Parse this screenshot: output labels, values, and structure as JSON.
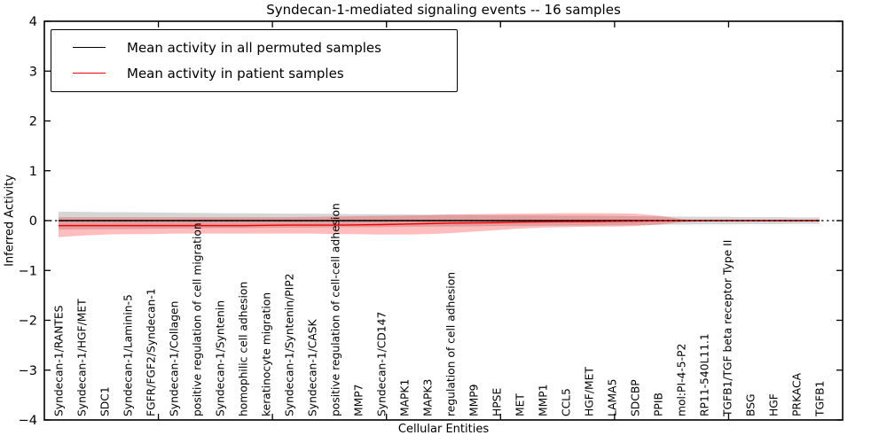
{
  "title": "Syndecan-1-mediated signaling events -- 16 samples",
  "chart_data": {
    "type": "line",
    "title": "Syndecan-1-mediated signaling events -- 16 samples",
    "xlabel": "Cellular Entities",
    "ylabel": "Inferred Activity",
    "ylim": [
      -4,
      4
    ],
    "yticks": [
      4,
      3,
      2,
      1,
      0,
      -1,
      -2,
      -3,
      -4
    ],
    "grid": false,
    "legend_position": "upper-left",
    "zero_line_dashed": true,
    "categories": [
      "Syndecan-1/RANTES",
      "Syndecan-1/HGF/MET",
      "SDC1",
      "Syndecan-1/Laminin-5",
      "FGFR/FGF2/Syndecan-1",
      "Syndecan-1/Collagen",
      "positive regulation of cell migration",
      "Syndecan-1/Syntenin",
      "homophilic cell adhesion",
      "keratinocyte migration",
      "Syndecan-1/Syntenin/PIP2",
      "Syndecan-1/CASK",
      "positive regulation of cell-cell adhesion",
      "MMP7",
      "Syndecan-1/CD147",
      "MAPK1",
      "MAPK3",
      "regulation of cell adhesion",
      "MMP9",
      "HPSE",
      "MET",
      "MMP1",
      "CCL5",
      "HGF/MET",
      "LAMA5",
      "SDCBP",
      "PPIB",
      "mol:PI-4-5-P2",
      "RP11-540L11.1",
      "TGFB1/TGF beta receptor Type II",
      "BSG",
      "HGF",
      "PRKACA",
      "TGFB1"
    ],
    "series": [
      {
        "name": "Mean activity in all permuted samples",
        "color": "#000000",
        "values": [
          0,
          0,
          0,
          0,
          0,
          0,
          0,
          0,
          0,
          0,
          0,
          0,
          0,
          0,
          0,
          0,
          0,
          0,
          0,
          0,
          0,
          0,
          0,
          0,
          0,
          0,
          0,
          0,
          0,
          0,
          0,
          0,
          0,
          0
        ]
      },
      {
        "name": "Mean activity in patient samples",
        "color": "#f40000",
        "values": [
          -0.1,
          -0.1,
          -0.1,
          -0.1,
          -0.1,
          -0.1,
          -0.1,
          -0.1,
          -0.1,
          -0.095,
          -0.09,
          -0.09,
          -0.09,
          -0.085,
          -0.08,
          -0.07,
          -0.06,
          -0.05,
          -0.045,
          -0.04,
          -0.03,
          -0.025,
          -0.02,
          -0.02,
          -0.015,
          -0.01,
          -0.005,
          0.0,
          0.005,
          0.005,
          0.005,
          0.005,
          0.005,
          0.005
        ]
      }
    ],
    "bands": [
      {
        "name": "permuted-samples-range",
        "color": "rgba(0,0,0,0.16)",
        "upper": [
          0.18,
          0.175,
          0.17,
          0.17,
          0.165,
          0.16,
          0.155,
          0.15,
          0.15,
          0.145,
          0.14,
          0.14,
          0.135,
          0.13,
          0.13,
          0.125,
          0.12,
          0.12,
          0.115,
          0.11,
          0.11,
          0.105,
          0.1,
          0.1,
          0.095,
          0.09,
          0.085,
          0.08,
          0.075,
          0.075,
          0.07,
          0.07,
          0.065,
          0.065
        ],
        "lower": [
          -0.18,
          -0.175,
          -0.17,
          -0.17,
          -0.165,
          -0.16,
          -0.155,
          -0.15,
          -0.15,
          -0.145,
          -0.14,
          -0.14,
          -0.135,
          -0.13,
          -0.13,
          -0.125,
          -0.12,
          -0.12,
          -0.115,
          -0.11,
          -0.11,
          -0.105,
          -0.1,
          -0.1,
          -0.095,
          -0.09,
          -0.085,
          -0.08,
          -0.075,
          -0.075,
          -0.07,
          -0.07,
          -0.065,
          -0.065
        ]
      },
      {
        "name": "patient-samples-range",
        "color": "rgba(255,0,0,0.26)",
        "upper": [
          0.07,
          0.07,
          0.07,
          0.07,
          0.07,
          0.07,
          0.07,
          0.07,
          0.07,
          0.07,
          0.07,
          0.075,
          0.08,
          0.09,
          0.095,
          0.1,
          0.11,
          0.12,
          0.13,
          0.135,
          0.14,
          0.145,
          0.15,
          0.15,
          0.15,
          0.14,
          0.1,
          0.03,
          0.01,
          0.01,
          0.01,
          0.01,
          0.01,
          0.01
        ],
        "lower": [
          -0.33,
          -0.3,
          -0.28,
          -0.27,
          -0.27,
          -0.26,
          -0.26,
          -0.26,
          -0.26,
          -0.26,
          -0.26,
          -0.26,
          -0.27,
          -0.27,
          -0.28,
          -0.28,
          -0.27,
          -0.25,
          -0.22,
          -0.19,
          -0.16,
          -0.14,
          -0.13,
          -0.12,
          -0.12,
          -0.11,
          -0.08,
          -0.03,
          -0.01,
          -0.01,
          -0.01,
          -0.01,
          -0.01,
          -0.01
        ]
      }
    ]
  }
}
